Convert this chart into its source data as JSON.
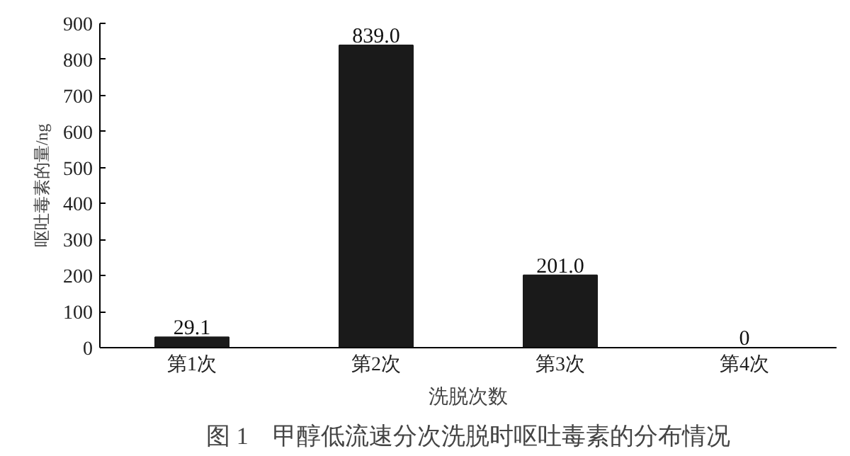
{
  "chart_data": {
    "type": "bar",
    "title": "图 1　甲醇低流速分次洗脱时呕吐毒素的分布情况",
    "xlabel": "洗脱次数",
    "ylabel": "呕吐毒素的量/ng",
    "categories": [
      "第1次",
      "第2次",
      "第3次",
      "第4次"
    ],
    "values": [
      29.1,
      839.0,
      201.0,
      0
    ],
    "value_labels": [
      "29.1",
      "839.0",
      "201.0",
      "0"
    ],
    "color": "#1a1a1a",
    "ylim": [
      0,
      900
    ],
    "yticks": [
      0,
      100,
      200,
      300,
      400,
      500,
      600,
      700,
      800,
      900
    ],
    "grid": false
  }
}
